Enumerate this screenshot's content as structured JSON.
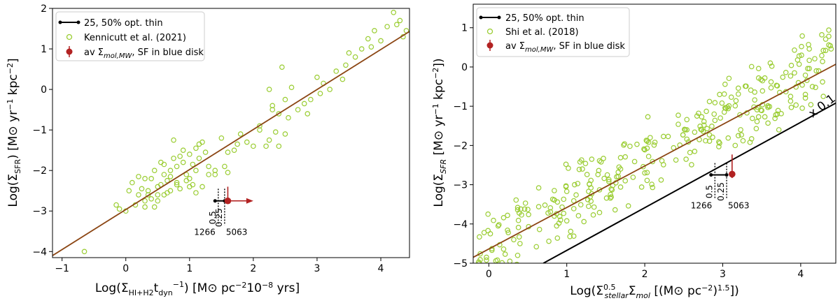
{
  "chart_data": [
    {
      "type": "scatter",
      "xlabel": "Log(Σ_{HI+H2} t_dyn^{-1}) [M⊙ pc⁻² 10⁻⁸ yrs]",
      "ylabel": "Log(Σ_SFR) [M⊙ yr⁻¹ kpc⁻²]",
      "xlim": [
        -1.15,
        4.45
      ],
      "ylim": [
        -4.15,
        2.0
      ],
      "xticks": [
        -1,
        0,
        1,
        2,
        3,
        4
      ],
      "yticks": [
        -4,
        -3,
        -2,
        -1,
        0,
        1,
        2
      ],
      "legend": {
        "position": "top-left",
        "entries": [
          {
            "label": "25, 50% opt. thin",
            "kind": "line",
            "color": "#000000"
          },
          {
            "label": "Kennicutt et al. (2021)",
            "kind": "open-circle",
            "color": "#9acd32"
          },
          {
            "label": "av Σmol,MW, SF in blue disk",
            "kind": "errorpoint",
            "color": "#b22222"
          }
        ]
      },
      "fit_line": {
        "x": [
          -1.15,
          4.45
        ],
        "y": [
          -4.1,
          1.43
        ],
        "color": "#8b4513"
      },
      "scatter": {
        "name": "Kennicutt et al. (2021)",
        "x": [
          -0.65,
          -0.15,
          -0.1,
          0.0,
          0.05,
          0.1,
          0.15,
          0.2,
          0.25,
          0.3,
          0.3,
          0.35,
          0.4,
          0.45,
          0.5,
          0.5,
          0.55,
          0.6,
          0.6,
          0.65,
          0.7,
          0.7,
          0.75,
          0.8,
          0.8,
          0.85,
          0.9,
          0.95,
          1.0,
          1.0,
          1.05,
          1.1,
          1.1,
          1.15,
          1.2,
          1.25,
          1.3,
          0.4,
          0.5,
          0.6,
          0.7,
          0.9,
          1.0,
          1.1,
          1.2,
          1.3,
          1.4,
          0.3,
          0.45,
          0.55,
          0.65,
          0.75,
          0.85,
          0.95,
          1.05,
          1.15,
          0.2,
          0.35,
          0.8,
          1.5,
          1.55,
          1.6,
          1.7,
          1.75,
          1.8,
          1.9,
          2.0,
          2.1,
          2.2,
          2.25,
          2.3,
          2.35,
          2.4,
          2.5,
          2.5,
          2.55,
          2.6,
          2.7,
          2.8,
          2.85,
          2.9,
          3.0,
          3.05,
          3.1,
          3.2,
          3.3,
          3.4,
          3.45,
          3.5,
          3.6,
          3.7,
          3.8,
          3.85,
          3.9,
          4.0,
          4.1,
          4.2,
          4.25,
          4.3,
          4.35,
          4.4,
          2.45,
          2.25,
          2.3,
          2.4,
          1.6,
          1.4,
          2.1
        ],
        "y": [
          -4.0,
          -2.85,
          -2.95,
          -3.0,
          -2.5,
          -2.3,
          -2.85,
          -2.6,
          -2.45,
          -2.9,
          -2.2,
          -2.5,
          -2.7,
          -2.0,
          -2.4,
          -2.75,
          -2.35,
          -2.1,
          -2.6,
          -2.25,
          -2.0,
          -2.5,
          -1.7,
          -2.3,
          -1.9,
          -2.45,
          -1.8,
          -2.1,
          -2.2,
          -1.6,
          -2.35,
          -1.45,
          -2.0,
          -1.7,
          -2.4,
          -1.55,
          -2.1,
          -2.2,
          -2.6,
          -1.85,
          -2.15,
          -1.5,
          -2.4,
          -2.55,
          -1.3,
          -1.9,
          -2.0,
          -2.75,
          -2.9,
          -1.8,
          -2.55,
          -1.25,
          -1.65,
          -2.25,
          -1.85,
          -1.35,
          -2.15,
          -2.6,
          -2.35,
          -1.2,
          -1.9,
          -2.05,
          -1.5,
          -1.35,
          -1.1,
          -1.3,
          -1.4,
          -1.0,
          -1.4,
          -1.25,
          -0.5,
          -1.05,
          -0.6,
          -0.25,
          -1.1,
          -0.7,
          0.05,
          -0.5,
          -0.35,
          -0.6,
          -0.25,
          0.3,
          -0.1,
          0.15,
          0.0,
          0.45,
          0.25,
          0.6,
          0.9,
          0.8,
          1.0,
          1.25,
          1.05,
          1.45,
          1.2,
          1.55,
          1.9,
          1.6,
          1.7,
          1.3,
          1.45,
          0.55,
          0.0,
          -0.4,
          -1.4,
          -1.55,
          -2.1,
          -0.9
        ],
        "color": "#9acd32"
      },
      "opt_thin": {
        "points_x": [
          1.4,
          1.55
        ],
        "y": -2.75,
        "dotted_x": [
          1.45,
          1.55
        ],
        "dotted_y_range": [
          -3.35,
          -2.45
        ],
        "labels": [
          "0.5",
          "0.25"
        ],
        "bottom_labels": [
          "1266",
          "5063"
        ]
      },
      "red_point": {
        "x": 1.6,
        "y": -2.75,
        "arrow_to_x": 2.0,
        "error_up": 0.35,
        "error_down": 0.05,
        "color": "#b22222"
      }
    },
    {
      "type": "scatter",
      "xlabel": "Log(Σ^0.5_stellar Σ_mol [(M⊙ pc⁻²)^1.5])",
      "ylabel": "Log(Σ_SFR [M⊙ yr⁻¹ kpc⁻²])",
      "xlim": [
        -0.2,
        4.45
      ],
      "ylim": [
        -5.0,
        1.6
      ],
      "xticks": [
        0,
        1,
        2,
        3,
        4
      ],
      "yticks": [
        -5,
        -4,
        -3,
        -2,
        -1,
        0,
        1
      ],
      "legend": {
        "position": "top-left",
        "entries": [
          {
            "label": "25, 50% opt. thin",
            "kind": "line",
            "color": "#000000"
          },
          {
            "label": "Shi et al. (2018)",
            "kind": "open-circle",
            "color": "#9acd32"
          },
          {
            "label": "av Σmol,MW, SF in blue disk",
            "kind": "errorpoint",
            "color": "#b22222"
          }
        ]
      },
      "fit_line": {
        "x": [
          -0.2,
          4.45
        ],
        "y": [
          -4.85,
          0.07
        ],
        "color": "#8b4513"
      },
      "scaled_line": {
        "x": [
          0.7,
          4.45
        ],
        "y": [
          -5.0,
          -0.92
        ],
        "color": "#000000",
        "label": "x 0.1"
      },
      "opt_thin": {
        "points_x": [
          2.85,
          3.05
        ],
        "y": -2.75,
        "dotted_x": [
          2.9,
          3.05
        ],
        "dotted_y_range": [
          -3.35,
          -2.45
        ],
        "labels": [
          "0.5",
          "0.25"
        ],
        "bottom_labels": [
          "1266",
          "5063"
        ]
      },
      "red_point": {
        "x": 3.12,
        "y": -2.73,
        "error_up": 0.5,
        "error_down": 0.1,
        "color": "#b22222"
      }
    }
  ]
}
